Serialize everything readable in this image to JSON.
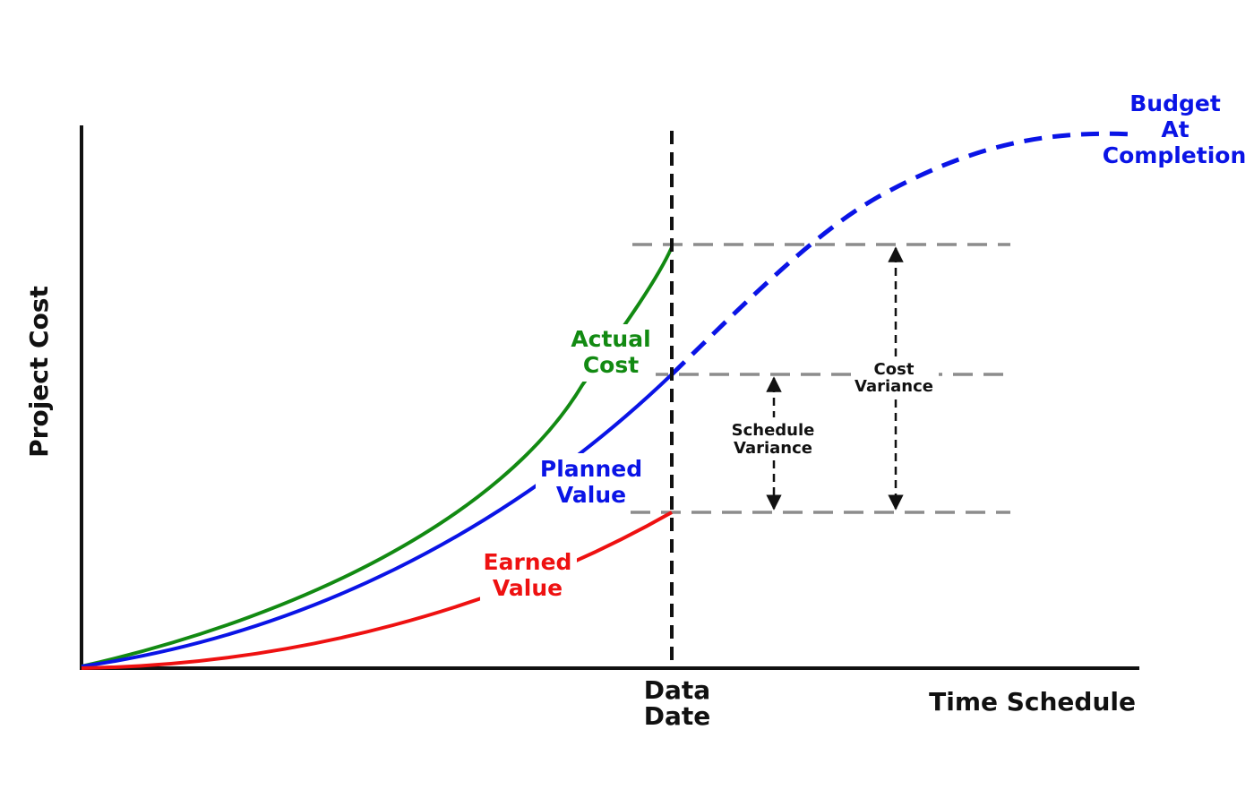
{
  "axes": {
    "y_label": "Project Cost",
    "x_label": "Time Schedule"
  },
  "data_date": {
    "line1": "Data",
    "line2": "Date"
  },
  "curves": {
    "actual_cost": {
      "line1": "Actual",
      "line2": "Cost",
      "color": "#128a12"
    },
    "planned_value": {
      "line1": "Planned",
      "line2": "Value",
      "color": "#0a14e6"
    },
    "earned_value": {
      "line1": "Earned",
      "line2": "Value",
      "color": "#ee1111"
    }
  },
  "budget_at_completion": {
    "line1": "Budget",
    "line2": "At",
    "line3": "Completion",
    "color": "#0a14e6"
  },
  "variances": {
    "schedule": {
      "line1": "Schedule",
      "line2": "Variance"
    },
    "cost": {
      "line1": "Cost",
      "line2": "Variance"
    }
  },
  "colors": {
    "axis": "#111111",
    "guide": "#8c8c8c",
    "arrow": "#111111"
  }
}
